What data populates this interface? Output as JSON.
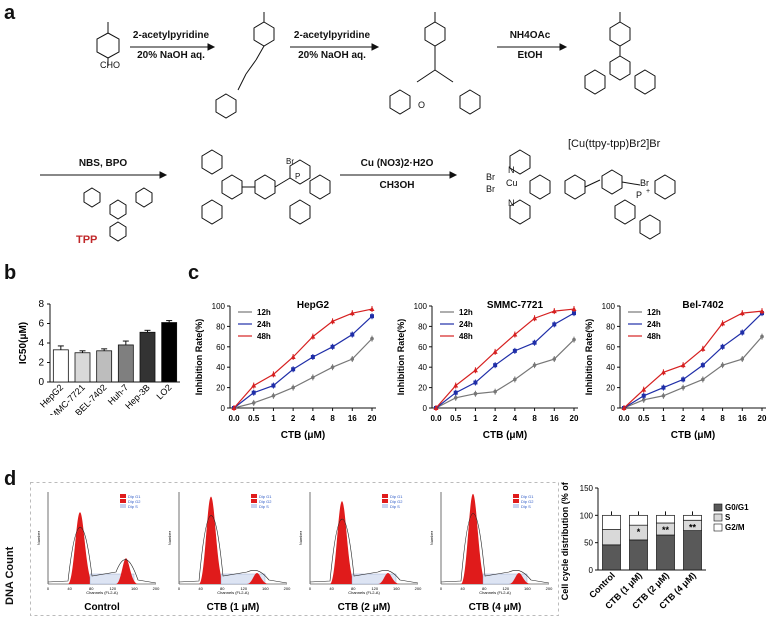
{
  "panels": {
    "a": "a",
    "b": "b",
    "c": "c",
    "d": "d"
  },
  "synthesis": {
    "start_label": "CHO",
    "step1_top": "2-acetylpyridine",
    "step1_bottom": "20% NaOH aq.",
    "step2_top": "2-acetylpyridine",
    "step2_bottom": "20% NaOH aq.",
    "step3_top": "NH4OAc",
    "step3_bottom": "EtOH",
    "step4_top": "NBS, BPO",
    "tpp_label": "TPP",
    "step5_top": "Cu (NO3)2·H2O",
    "step5_bottom": "CH3OH",
    "product_title": "[Cu(ttpy-tpp)Br2]Br",
    "br": "Br",
    "cu": "Cu",
    "p": "P",
    "n": "N",
    "o": "O",
    "plus": "+",
    "minus": "−"
  },
  "chart_data": [
    {
      "id": "b",
      "type": "bar",
      "title": "",
      "ylabel": "IC50(μM)",
      "ylim": [
        0,
        8
      ],
      "yticks": [
        "0",
        "2",
        "4",
        "6",
        "8"
      ],
      "categories": [
        "HepG2",
        "SMMC-7721",
        "BEL-7402",
        "Huh-7",
        "Hep-3B",
        "LO2"
      ],
      "values": [
        3.3,
        3.0,
        3.2,
        3.8,
        5.1,
        6.1
      ],
      "errors": [
        0.4,
        0.2,
        0.2,
        0.4,
        0.2,
        0.2
      ],
      "colors": [
        "#ffffff",
        "#d9d9d9",
        "#bdbdbd",
        "#7f7f7f",
        "#333333",
        "#000000"
      ]
    },
    {
      "id": "c1",
      "type": "line",
      "title": "HepG2",
      "xlabel": "CTB (μM)",
      "ylabel": "Inhibition Rate(%)",
      "x": [
        "0.0",
        "0.5",
        "1",
        "2",
        "4",
        "8",
        "16",
        "20"
      ],
      "ylim": [
        0,
        100
      ],
      "yticks": [
        "0",
        "20",
        "40",
        "60",
        "80",
        "100"
      ],
      "series": [
        {
          "name": "12h",
          "color": "#777777",
          "values": [
            0,
            5,
            12,
            20,
            30,
            40,
            48,
            68
          ]
        },
        {
          "name": "24h",
          "color": "#1f2ea8",
          "values": [
            0,
            15,
            22,
            38,
            50,
            60,
            72,
            90
          ]
        },
        {
          "name": "48h",
          "color": "#d62020",
          "values": [
            0,
            22,
            33,
            50,
            70,
            85,
            93,
            97
          ]
        }
      ]
    },
    {
      "id": "c2",
      "type": "line",
      "title": "SMMC-7721",
      "xlabel": "CTB (μM)",
      "ylabel": "Inhibition Rate(%)",
      "x": [
        "0.0",
        "0.5",
        "1",
        "2",
        "4",
        "8",
        "16",
        "20"
      ],
      "ylim": [
        0,
        100
      ],
      "yticks": [
        "0",
        "20",
        "40",
        "60",
        "80",
        "100"
      ],
      "series": [
        {
          "name": "12h",
          "color": "#777777",
          "values": [
            0,
            10,
            14,
            16,
            28,
            42,
            48,
            67
          ]
        },
        {
          "name": "24h",
          "color": "#1f2ea8",
          "values": [
            0,
            15,
            25,
            42,
            56,
            64,
            82,
            93
          ]
        },
        {
          "name": "48h",
          "color": "#d62020",
          "values": [
            0,
            22,
            37,
            55,
            72,
            88,
            95,
            97
          ]
        }
      ]
    },
    {
      "id": "c3",
      "type": "line",
      "title": "Bel-7402",
      "xlabel": "CTB (μM)",
      "ylabel": "Inhibition Rate(%)",
      "x": [
        "0.0",
        "0.5",
        "1",
        "2",
        "4",
        "8",
        "16",
        "20"
      ],
      "ylim": [
        0,
        100
      ],
      "yticks": [
        "0",
        "20",
        "40",
        "60",
        "80",
        "100"
      ],
      "series": [
        {
          "name": "12h",
          "color": "#777777",
          "values": [
            0,
            8,
            12,
            20,
            28,
            42,
            48,
            70
          ]
        },
        {
          "name": "24h",
          "color": "#1f2ea8",
          "values": [
            0,
            12,
            20,
            28,
            42,
            60,
            74,
            93
          ]
        },
        {
          "name": "48h",
          "color": "#d62020",
          "values": [
            0,
            18,
            35,
            42,
            58,
            83,
            93,
            95
          ]
        }
      ]
    },
    {
      "id": "d",
      "type": "bar",
      "stacked": true,
      "title": "",
      "ylabel": "Cell cycle distribution (% of total)",
      "ylim": [
        0,
        150
      ],
      "yticks": [
        "0",
        "50",
        "100",
        "150"
      ],
      "categories": [
        "Control",
        "CTB (1 μM)",
        "CTB (2 μM)",
        "CTB (4 μM)"
      ],
      "annotations": [
        "",
        "*",
        "**",
        "**"
      ],
      "series": [
        {
          "name": "G0/G1",
          "color": "#595959",
          "values": [
            46,
            55,
            64,
            72
          ]
        },
        {
          "name": "S",
          "color": "#d9d9d9",
          "values": [
            28,
            27,
            22,
            19
          ]
        },
        {
          "name": "G2/M",
          "color": "#ffffff",
          "values": [
            26,
            18,
            14,
            9
          ]
        }
      ]
    }
  ],
  "flow": {
    "ylabel": "DNA Count",
    "hist_ylabel": "Number",
    "hist_xlabel": "Channels (FL2-A)",
    "legend": [
      "Dip G1",
      "Dip G2",
      "Dip S"
    ],
    "panels": [
      "Control",
      "CTB (1 μM)",
      "CTB (2 μM)",
      "CTB (4 μM)"
    ],
    "x_ticks": [
      "0",
      "40",
      "80",
      "120",
      "160",
      "200"
    ]
  }
}
